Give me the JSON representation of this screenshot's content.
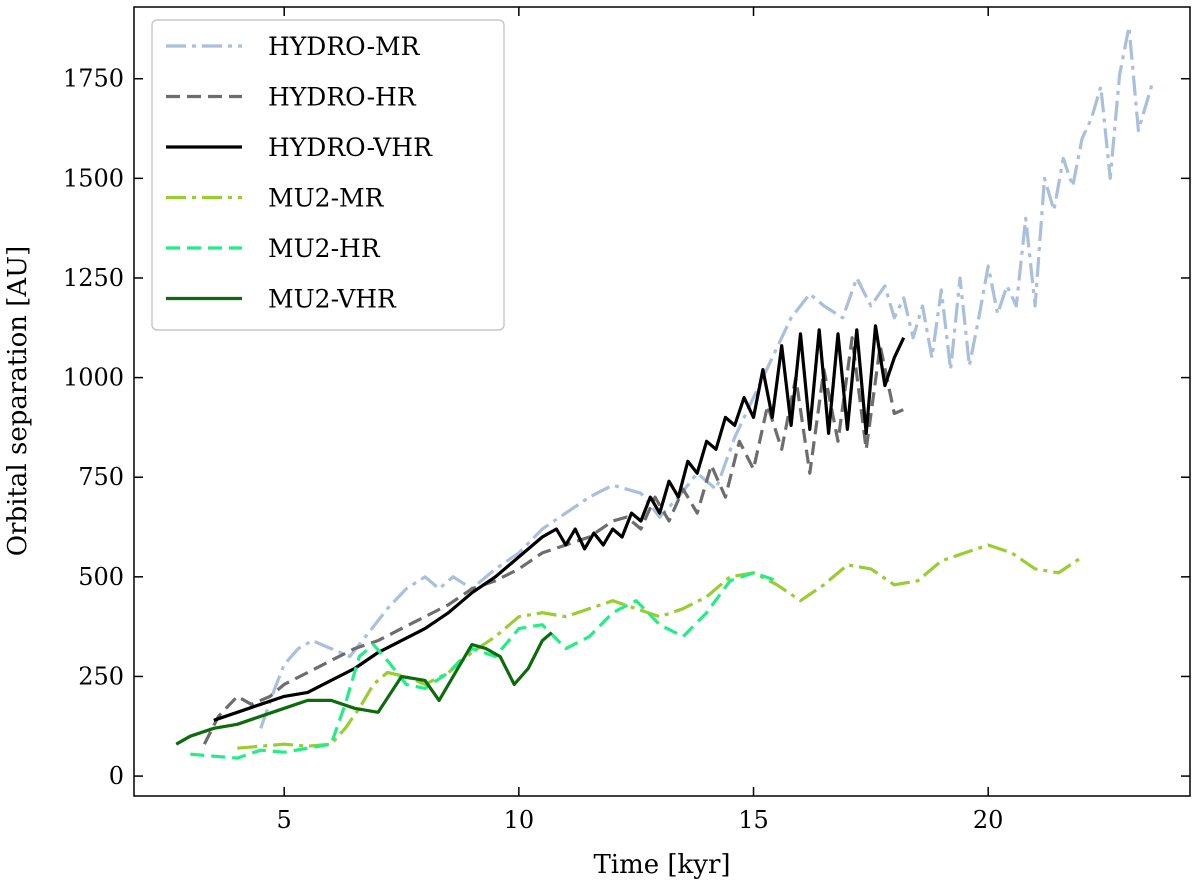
{
  "chart_data": {
    "type": "line",
    "title": "",
    "xlabel": "Time [kyr]",
    "ylabel": "Orbital separation [AU]",
    "xlim": [
      1.8,
      24.3
    ],
    "ylim": [
      -50,
      1930
    ],
    "xticks": [
      5,
      10,
      15,
      20
    ],
    "yticks": [
      0,
      250,
      500,
      750,
      1000,
      1250,
      1500,
      1750
    ],
    "legend_position": "top-left",
    "series": [
      {
        "name": "HYDRO-MR",
        "color": "#a9bfdc",
        "dash": "dashdot",
        "x": [
          4.5,
          4.8,
          5.0,
          5.3,
          5.6,
          6.0,
          6.4,
          6.8,
          7.2,
          7.6,
          8.0,
          8.3,
          8.6,
          9.0,
          9.5,
          10.0,
          10.5,
          11.0,
          11.5,
          12.0,
          12.3,
          12.6,
          13.0,
          13.4,
          13.8,
          14.2,
          14.6,
          15.0,
          15.4,
          15.8,
          16.2,
          16.5,
          16.9,
          17.2,
          17.5,
          17.8,
          18.0,
          18.2,
          18.4,
          18.6,
          18.8,
          19.0,
          19.2,
          19.4,
          19.6,
          19.8,
          20.0,
          20.2,
          20.4,
          20.6,
          20.8,
          21.0,
          21.2,
          21.4,
          21.6,
          21.8,
          22.0,
          22.2,
          22.4,
          22.6,
          22.8,
          23.0,
          23.2,
          23.4,
          23.5
        ],
        "y": [
          120,
          220,
          280,
          320,
          340,
          320,
          300,
          360,
          420,
          470,
          500,
          470,
          500,
          470,
          520,
          560,
          620,
          660,
          700,
          730,
          720,
          710,
          650,
          700,
          760,
          720,
          850,
          950,
          1050,
          1150,
          1210,
          1180,
          1150,
          1250,
          1180,
          1230,
          1150,
          1200,
          1100,
          1180,
          1050,
          1220,
          1020,
          1250,
          1030,
          1150,
          1280,
          1160,
          1230,
          1180,
          1400,
          1180,
          1500,
          1420,
          1550,
          1480,
          1600,
          1650,
          1730,
          1500,
          1760,
          1880,
          1620,
          1700,
          1740
        ]
      },
      {
        "name": "HYDRO-HR",
        "color": "#6d6d6d",
        "dash": "dashed",
        "x": [
          3.3,
          3.6,
          4.0,
          4.3,
          4.7,
          5.0,
          5.5,
          6.0,
          6.5,
          7.0,
          7.5,
          8.0,
          8.5,
          9.0,
          9.5,
          10.0,
          10.5,
          11.0,
          11.5,
          12.0,
          12.3,
          12.6,
          12.9,
          13.2,
          13.5,
          13.8,
          14.1,
          14.4,
          14.7,
          15.0,
          15.3,
          15.6,
          15.9,
          16.2,
          16.5,
          16.8,
          17.1,
          17.4,
          17.7,
          18.0,
          18.2
        ],
        "y": [
          80,
          150,
          200,
          180,
          200,
          230,
          260,
          290,
          320,
          340,
          370,
          400,
          430,
          470,
          490,
          520,
          560,
          580,
          600,
          640,
          650,
          620,
          700,
          640,
          720,
          660,
          780,
          700,
          840,
          770,
          930,
          820,
          1000,
          760,
          1020,
          840,
          1100,
          820,
          1080,
          910,
          920
        ]
      },
      {
        "name": "HYDRO-VHR",
        "color": "#000000",
        "dash": "solid",
        "x": [
          3.5,
          4.0,
          4.5,
          5.0,
          5.5,
          6.0,
          6.5,
          7.0,
          7.5,
          8.0,
          8.5,
          9.0,
          9.5,
          10.0,
          10.5,
          10.8,
          11.0,
          11.2,
          11.4,
          11.6,
          11.8,
          12.0,
          12.2,
          12.4,
          12.6,
          12.8,
          13.0,
          13.2,
          13.4,
          13.6,
          13.8,
          14.0,
          14.2,
          14.4,
          14.6,
          14.8,
          15.0,
          15.2,
          15.4,
          15.6,
          15.8,
          16.0,
          16.2,
          16.4,
          16.6,
          16.8,
          17.0,
          17.2,
          17.4,
          17.6,
          17.8,
          18.0,
          18.2
        ],
        "y": [
          140,
          160,
          180,
          200,
          210,
          240,
          270,
          310,
          340,
          370,
          410,
          460,
          500,
          550,
          600,
          620,
          580,
          620,
          570,
          610,
          580,
          620,
          600,
          660,
          640,
          700,
          660,
          740,
          700,
          790,
          760,
          840,
          820,
          900,
          880,
          950,
          900,
          1020,
          900,
          1080,
          880,
          1110,
          870,
          1120,
          860,
          1110,
          870,
          1120,
          860,
          1130,
          980,
          1050,
          1100
        ]
      },
      {
        "name": "MU2-MR",
        "color": "#9acd32",
        "dash": "dashdot",
        "x": [
          4.0,
          4.5,
          5.0,
          5.5,
          6.0,
          6.3,
          6.6,
          6.9,
          7.2,
          7.6,
          8.0,
          8.5,
          9.0,
          9.5,
          10.0,
          10.5,
          11.0,
          11.5,
          12.0,
          12.5,
          13.0,
          13.5,
          14.0,
          14.5,
          15.0,
          15.5,
          16.0,
          16.5,
          17.0,
          17.5,
          18.0,
          18.5,
          19.0,
          19.5,
          20.0,
          20.5,
          21.0,
          21.5,
          22.0
        ],
        "y": [
          70,
          75,
          80,
          75,
          80,
          120,
          170,
          230,
          260,
          250,
          230,
          260,
          310,
          350,
          400,
          410,
          400,
          420,
          440,
          420,
          400,
          420,
          450,
          500,
          510,
          480,
          440,
          480,
          530,
          520,
          480,
          490,
          540,
          560,
          580,
          560,
          520,
          510,
          550
        ]
      },
      {
        "name": "MU2-HR",
        "color": "#22ee88",
        "dash": "dashed",
        "x": [
          3.0,
          3.5,
          4.0,
          4.5,
          5.0,
          5.5,
          6.0,
          6.3,
          6.6,
          6.9,
          7.2,
          7.6,
          8.0,
          8.5,
          9.0,
          9.5,
          10.0,
          10.5,
          11.0,
          11.5,
          12.0,
          12.5,
          13.0,
          13.5,
          14.0,
          14.5,
          15.0,
          15.5
        ],
        "y": [
          55,
          50,
          45,
          65,
          60,
          70,
          80,
          180,
          300,
          330,
          290,
          230,
          220,
          260,
          320,
          300,
          370,
          380,
          320,
          350,
          410,
          440,
          380,
          350,
          410,
          490,
          510,
          490
        ]
      },
      {
        "name": "MU2-VHR",
        "color": "#0d6b0d",
        "dash": "solid",
        "x": [
          2.7,
          3.0,
          3.5,
          4.0,
          4.5,
          5.0,
          5.5,
          6.0,
          6.5,
          7.0,
          7.5,
          8.0,
          8.3,
          8.6,
          9.0,
          9.3,
          9.6,
          9.9,
          10.2,
          10.5,
          10.7
        ],
        "y": [
          80,
          100,
          120,
          130,
          150,
          170,
          190,
          190,
          170,
          160,
          250,
          240,
          190,
          250,
          330,
          320,
          300,
          230,
          270,
          340,
          360
        ]
      }
    ]
  }
}
